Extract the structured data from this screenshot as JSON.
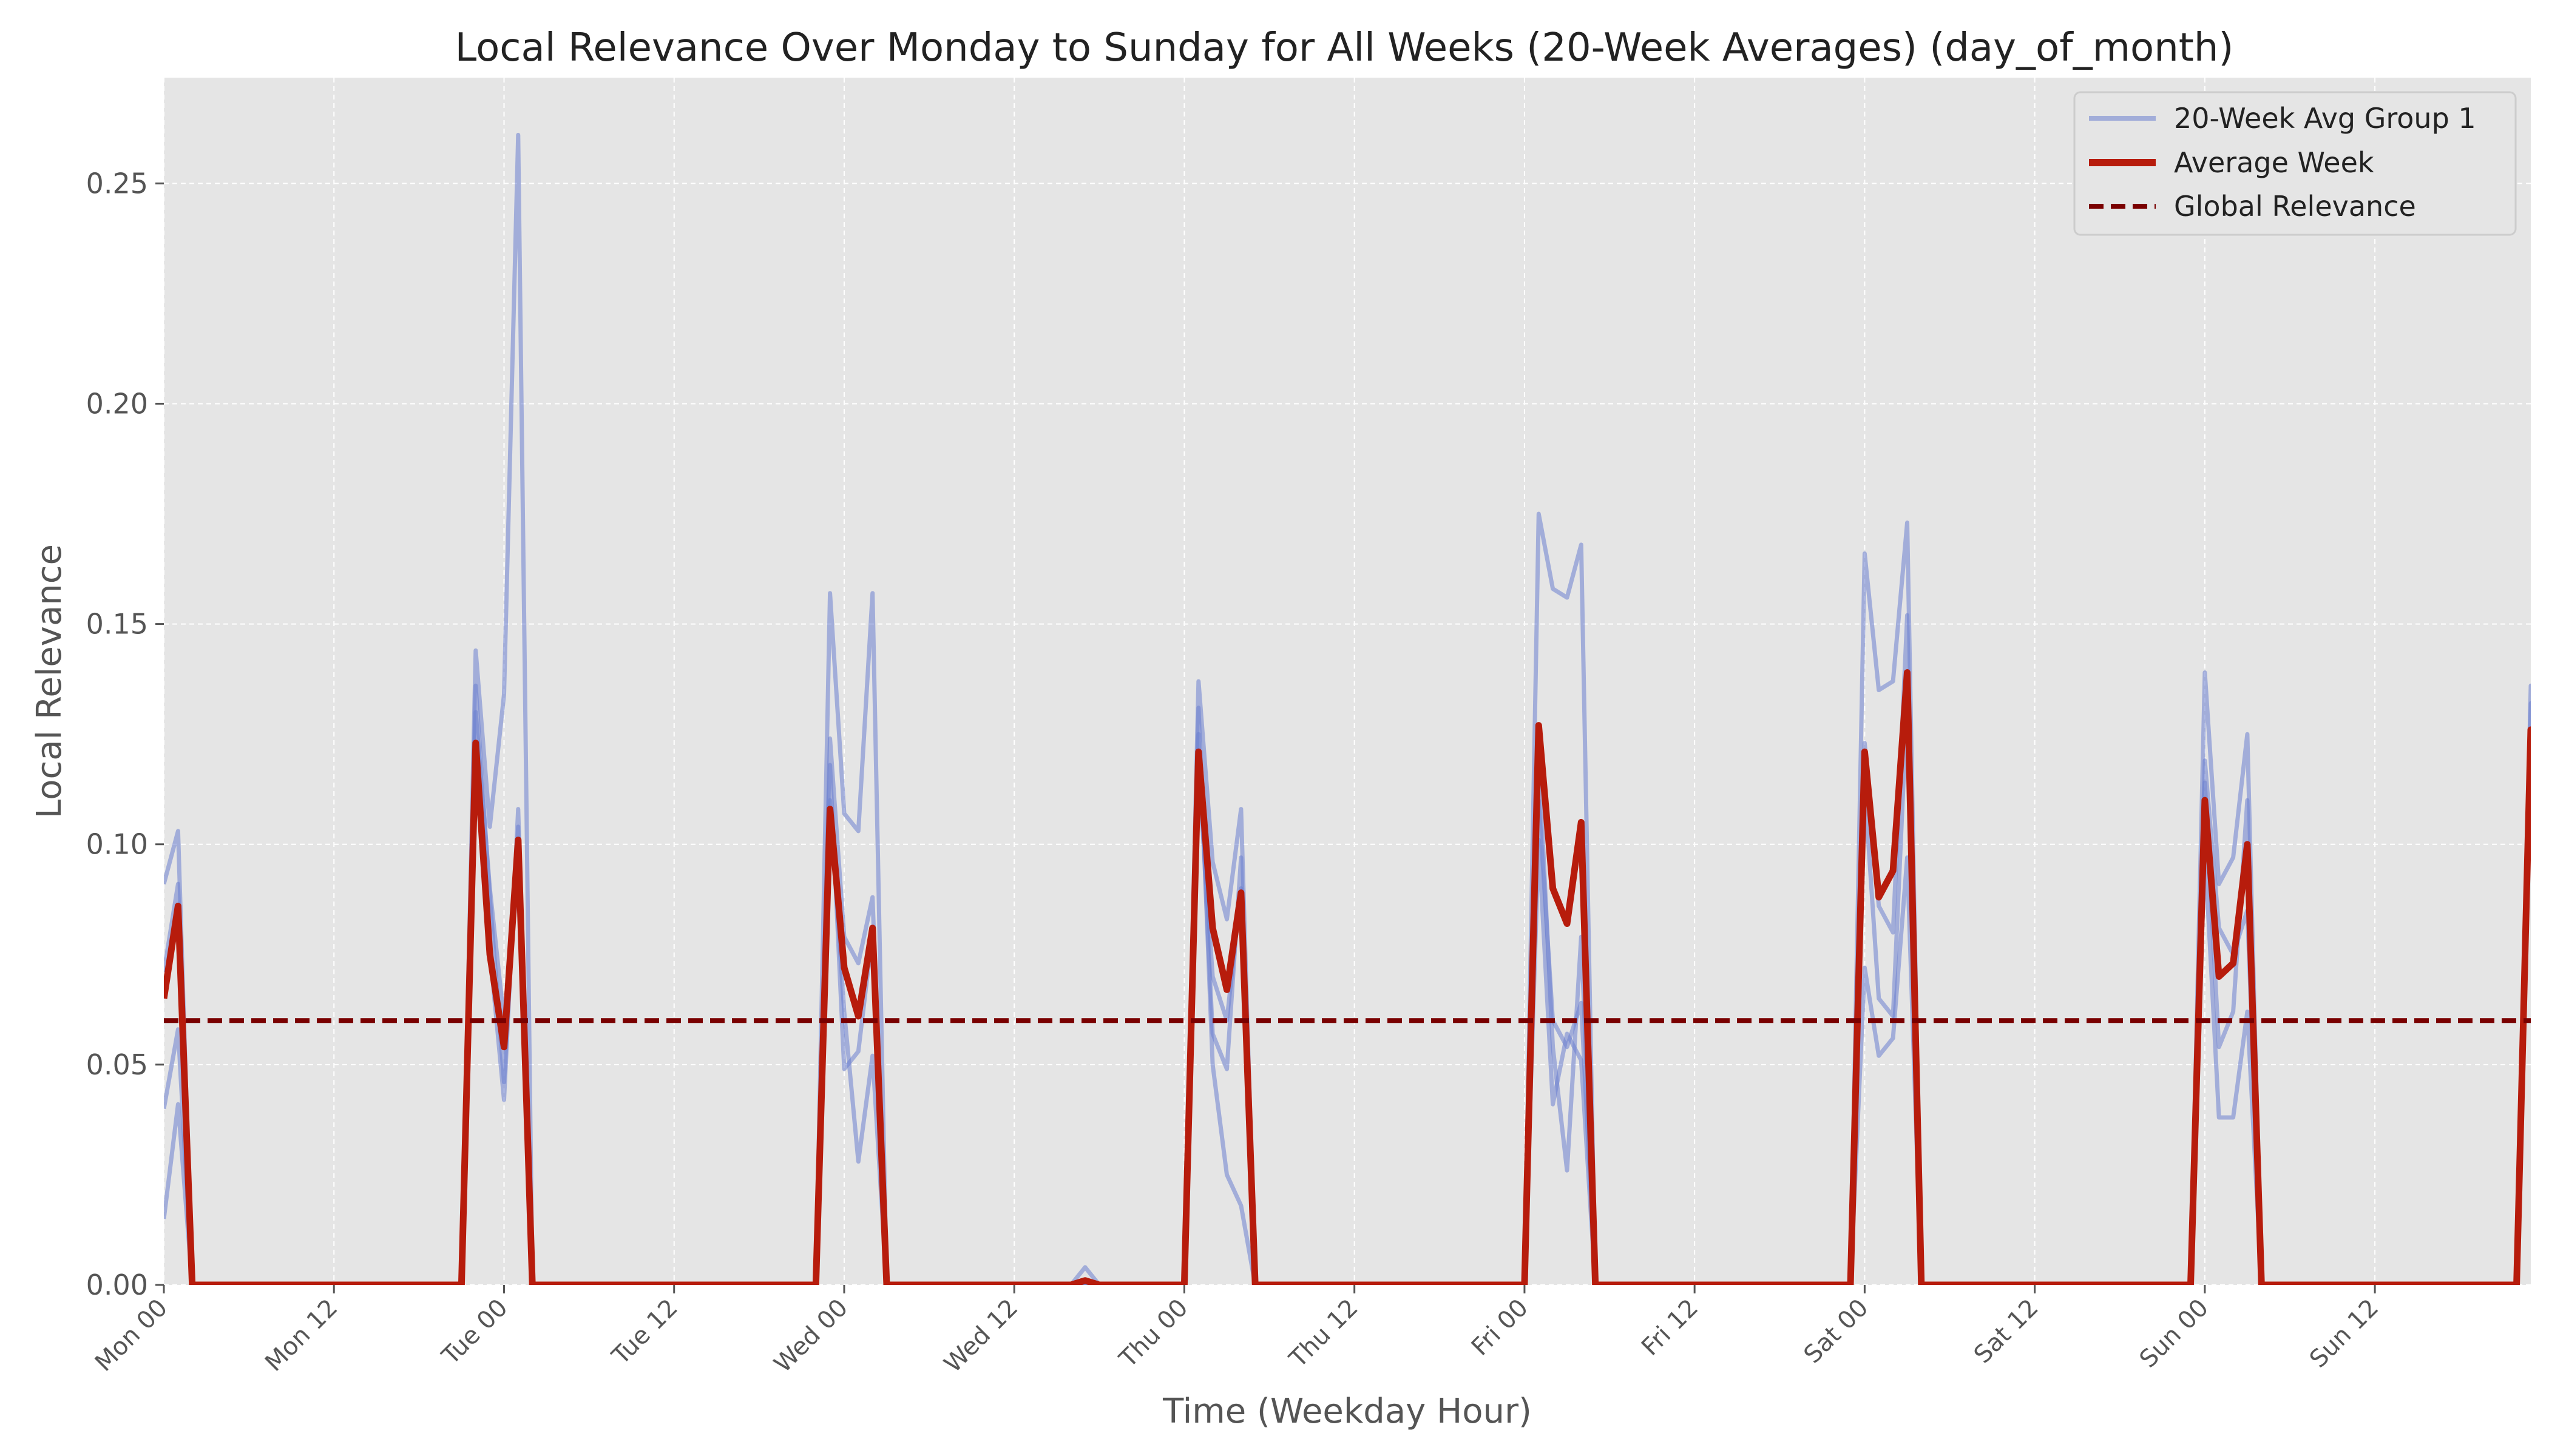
{
  "chart_data": {
    "type": "line",
    "title": "Local Relevance Over Monday to Sunday for All Weeks (20-Week Averages) (day_of_month)",
    "xlabel": "Time (Weekday Hour)",
    "ylabel": "Local Relevance",
    "x_unit": "hours since Mon 00",
    "xlim": [
      0,
      167
    ],
    "ylim": [
      0,
      0.274
    ],
    "y_ticks": [
      0.0,
      0.05,
      0.1,
      0.15,
      0.2,
      0.25
    ],
    "y_tick_labels": [
      "0.00",
      "0.05",
      "0.10",
      "0.15",
      "0.20",
      "0.25"
    ],
    "x_ticks": [
      0,
      12,
      24,
      36,
      48,
      60,
      72,
      84,
      96,
      108,
      120,
      132,
      144,
      156
    ],
    "x_tick_labels": [
      "Mon 00",
      "Mon 12",
      "Tue 00",
      "Tue 12",
      "Wed 00",
      "Wed 12",
      "Thu 00",
      "Thu 12",
      "Fri 00",
      "Fri 12",
      "Sat 00",
      "Sat 12",
      "Sun 00",
      "Sun 12"
    ],
    "grid": true,
    "legend_position": "top-right",
    "legend": [
      "20-Week Avg Group 1",
      "Average Week",
      "Global Relevance"
    ],
    "global_relevance": 0.06,
    "colors": {
      "group": "#6b7fd0",
      "average": "#b71c0c",
      "global": "#7a0000",
      "plot_bg": "#e5e5e5"
    },
    "series": [
      {
        "name": "20-Week Avg Group 1",
        "role": "group",
        "points": [
          [
            0,
            0.091
          ],
          [
            1,
            0.103
          ],
          [
            2,
            0
          ],
          [
            21,
            0
          ],
          [
            22,
            0.144
          ],
          [
            23,
            0.104
          ],
          [
            24,
            0.134
          ],
          [
            25,
            0.261
          ],
          [
            26,
            0
          ],
          [
            46,
            0
          ],
          [
            47,
            0.157
          ],
          [
            48,
            0.107
          ],
          [
            49,
            0.103
          ],
          [
            50,
            0.157
          ],
          [
            51,
            0
          ],
          [
            72,
            0
          ],
          [
            73,
            0.137
          ],
          [
            74,
            0.096
          ],
          [
            75,
            0.083
          ],
          [
            76,
            0.108
          ],
          [
            77,
            0
          ],
          [
            96,
            0
          ],
          [
            97,
            0.175
          ],
          [
            98,
            0.158
          ],
          [
            99,
            0.156
          ],
          [
            100,
            0.168
          ],
          [
            101,
            0
          ],
          [
            119,
            0
          ],
          [
            120,
            0.166
          ],
          [
            121,
            0.135
          ],
          [
            122,
            0.137
          ],
          [
            123,
            0.173
          ],
          [
            124,
            0
          ],
          [
            143,
            0
          ],
          [
            144,
            0.139
          ],
          [
            145,
            0.091
          ],
          [
            146,
            0.097
          ],
          [
            147,
            0.125
          ],
          [
            148,
            0
          ],
          [
            166,
            0
          ],
          [
            167,
            0.136
          ],
          [
            168,
            0.115
          ]
        ]
      },
      {
        "name": "20-Week Avg Group 1",
        "role": "group",
        "points": [
          [
            0,
            0.04
          ],
          [
            1,
            0.058
          ],
          [
            2,
            0
          ],
          [
            21,
            0
          ],
          [
            22,
            0.13
          ],
          [
            23,
            0.09
          ],
          [
            24,
            0.06
          ],
          [
            25,
            0.093
          ],
          [
            26,
            0
          ],
          [
            46,
            0
          ],
          [
            47,
            0.124
          ],
          [
            48,
            0.079
          ],
          [
            49,
            0.073
          ],
          [
            50,
            0.088
          ],
          [
            51,
            0
          ],
          [
            72,
            0
          ],
          [
            73,
            0.117
          ],
          [
            74,
            0.07
          ],
          [
            75,
            0.06
          ],
          [
            76,
            0.09
          ],
          [
            77,
            0
          ],
          [
            96,
            0
          ],
          [
            97,
            0.11
          ],
          [
            98,
            0.06
          ],
          [
            99,
            0.054
          ],
          [
            100,
            0.064
          ],
          [
            101,
            0
          ],
          [
            119,
            0
          ],
          [
            120,
            0.123
          ],
          [
            121,
            0.086
          ],
          [
            122,
            0.08
          ],
          [
            123,
            0.152
          ],
          [
            124,
            0
          ],
          [
            143,
            0
          ],
          [
            144,
            0.119
          ],
          [
            145,
            0.081
          ],
          [
            146,
            0.075
          ],
          [
            147,
            0.085
          ],
          [
            148,
            0
          ],
          [
            166,
            0
          ],
          [
            167,
            0.132
          ],
          [
            168,
            0.09
          ]
        ]
      },
      {
        "name": "20-Week Avg Group 1",
        "role": "group",
        "points": [
          [
            0,
            0.015
          ],
          [
            1,
            0.041
          ],
          [
            2,
            0
          ],
          [
            21,
            0
          ],
          [
            22,
            0.121
          ],
          [
            23,
            0.076
          ],
          [
            24,
            0.042
          ],
          [
            25,
            0.108
          ],
          [
            26,
            0
          ],
          [
            46,
            0
          ],
          [
            47,
            0.118
          ],
          [
            48,
            0.049
          ],
          [
            49,
            0.053
          ],
          [
            50,
            0.08
          ],
          [
            51,
            0
          ],
          [
            72,
            0
          ],
          [
            73,
            0.131
          ],
          [
            74,
            0.05
          ],
          [
            75,
            0.025
          ],
          [
            76,
            0.018
          ],
          [
            77,
            0
          ],
          [
            96,
            0
          ],
          [
            97,
            0.12
          ],
          [
            98,
            0.054
          ],
          [
            99,
            0.026
          ],
          [
            100,
            0.079
          ],
          [
            101,
            0
          ],
          [
            119,
            0
          ],
          [
            120,
            0.072
          ],
          [
            121,
            0.052
          ],
          [
            122,
            0.056
          ],
          [
            123,
            0.097
          ],
          [
            124,
            0
          ],
          [
            143,
            0
          ],
          [
            144,
            0.099
          ],
          [
            145,
            0.038
          ],
          [
            146,
            0.038
          ],
          [
            147,
            0.062
          ],
          [
            148,
            0
          ],
          [
            166,
            0
          ],
          [
            167,
            0.121
          ],
          [
            168,
            0.065
          ]
        ]
      },
      {
        "name": "20-Week Avg Group 1",
        "role": "group",
        "points": [
          [
            0,
            0.071
          ],
          [
            1,
            0.091
          ],
          [
            2,
            0
          ],
          [
            21,
            0
          ],
          [
            22,
            0.136
          ],
          [
            23,
            0.088
          ],
          [
            24,
            0.046
          ],
          [
            25,
            0.104
          ],
          [
            26,
            0
          ],
          [
            46,
            0
          ],
          [
            47,
            0.11
          ],
          [
            48,
            0.062
          ],
          [
            49,
            0.028
          ],
          [
            50,
            0.052
          ],
          [
            51,
            0
          ],
          [
            64,
            0
          ],
          [
            65,
            0.004
          ],
          [
            66,
            0
          ],
          [
            72,
            0
          ],
          [
            73,
            0.125
          ],
          [
            74,
            0.057
          ],
          [
            75,
            0.049
          ],
          [
            76,
            0.097
          ],
          [
            77,
            0
          ],
          [
            96,
            0
          ],
          [
            97,
            0.101
          ],
          [
            98,
            0.041
          ],
          [
            99,
            0.057
          ],
          [
            100,
            0.051
          ],
          [
            101,
            0
          ],
          [
            119,
            0
          ],
          [
            120,
            0.113
          ],
          [
            121,
            0.065
          ],
          [
            122,
            0.061
          ],
          [
            123,
            0.133
          ],
          [
            124,
            0
          ],
          [
            143,
            0
          ],
          [
            144,
            0.114
          ],
          [
            145,
            0.054
          ],
          [
            146,
            0.062
          ],
          [
            147,
            0.11
          ],
          [
            148,
            0
          ],
          [
            166,
            0
          ],
          [
            167,
            0.125
          ],
          [
            168,
            0.085
          ]
        ]
      },
      {
        "name": "Average Week",
        "role": "average",
        "points": [
          [
            0,
            0.065
          ],
          [
            1,
            0.086
          ],
          [
            2,
            0
          ],
          [
            21,
            0
          ],
          [
            22,
            0.123
          ],
          [
            23,
            0.075
          ],
          [
            24,
            0.054
          ],
          [
            25,
            0.101
          ],
          [
            26,
            0
          ],
          [
            46,
            0
          ],
          [
            47,
            0.108
          ],
          [
            48,
            0.072
          ],
          [
            49,
            0.061
          ],
          [
            50,
            0.081
          ],
          [
            51,
            0
          ],
          [
            64,
            0
          ],
          [
            65,
            0.001
          ],
          [
            66,
            0
          ],
          [
            72,
            0
          ],
          [
            73,
            0.121
          ],
          [
            74,
            0.081
          ],
          [
            75,
            0.067
          ],
          [
            76,
            0.089
          ],
          [
            77,
            0
          ],
          [
            96,
            0
          ],
          [
            97,
            0.127
          ],
          [
            98,
            0.09
          ],
          [
            99,
            0.082
          ],
          [
            100,
            0.105
          ],
          [
            101,
            0
          ],
          [
            119,
            0
          ],
          [
            120,
            0.121
          ],
          [
            121,
            0.088
          ],
          [
            122,
            0.094
          ],
          [
            123,
            0.139
          ],
          [
            124,
            0
          ],
          [
            143,
            0
          ],
          [
            144,
            0.11
          ],
          [
            145,
            0.07
          ],
          [
            146,
            0.073
          ],
          [
            147,
            0.1
          ],
          [
            148,
            0
          ],
          [
            166,
            0
          ],
          [
            167,
            0.126
          ],
          [
            168,
            0.089
          ]
        ]
      }
    ]
  }
}
